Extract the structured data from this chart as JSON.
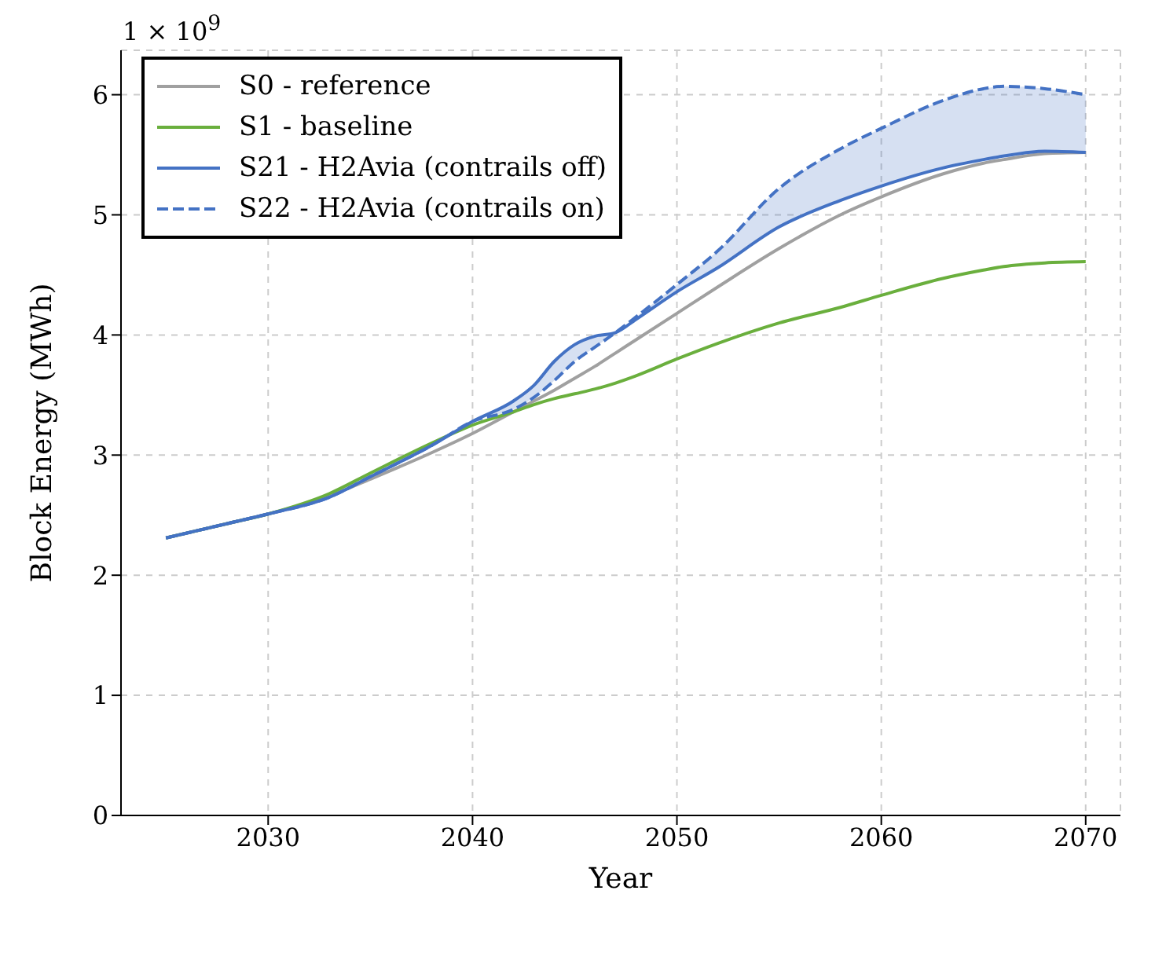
{
  "chart_data": {
    "type": "line",
    "xlabel": "Year",
    "ylabel": "Block Energy (MWh)",
    "annotations": [
      "1 × 10$^{9}$"
    ],
    "x": [
      2025,
      2028,
      2030,
      2033,
      2035,
      2038,
      2040,
      2042,
      2043,
      2044,
      2045,
      2046,
      2047,
      2048,
      2050,
      2052,
      2055,
      2058,
      2060,
      2063,
      2065,
      2066,
      2068,
      2070
    ],
    "series": [
      {
        "name": "S0 - reference",
        "color": "#a0a0a0",
        "values": [
          2.31,
          2.43,
          2.51,
          2.66,
          2.8,
          3.02,
          3.18,
          3.36,
          3.45,
          3.54,
          3.64,
          3.74,
          3.85,
          3.96,
          4.18,
          4.4,
          4.72,
          5.0,
          5.15,
          5.34,
          5.43,
          5.46,
          5.51,
          5.52
        ]
      },
      {
        "name": "S1 - baseline",
        "color": "#6aaf3d",
        "values": [
          2.31,
          2.43,
          2.51,
          2.68,
          2.85,
          3.1,
          3.25,
          3.36,
          3.42,
          3.47,
          3.51,
          3.55,
          3.6,
          3.66,
          3.8,
          3.93,
          4.1,
          4.23,
          4.33,
          4.47,
          4.54,
          4.57,
          4.6,
          4.61
        ]
      },
      {
        "name": "S21 - H2Avia (contrails off)",
        "color": "#4472c4",
        "values": [
          2.31,
          2.43,
          2.51,
          2.65,
          2.82,
          3.08,
          3.28,
          3.45,
          3.58,
          3.78,
          3.92,
          3.99,
          4.02,
          4.13,
          4.36,
          4.56,
          4.9,
          5.12,
          5.24,
          5.39,
          5.46,
          5.49,
          5.53,
          5.52
        ]
      },
      {
        "name": "S22 - H2Avia (contrails on)",
        "color": "#4472c4",
        "line_style": "dashed",
        "values": [
          2.31,
          2.43,
          2.51,
          2.65,
          2.82,
          3.08,
          3.28,
          3.38,
          3.48,
          3.62,
          3.78,
          3.9,
          4.02,
          4.15,
          4.42,
          4.7,
          5.22,
          5.55,
          5.72,
          5.95,
          6.05,
          6.07,
          6.05,
          6.0
        ],
        "lower": [
          2.31,
          2.43,
          2.51,
          2.65,
          2.82,
          3.08,
          3.28,
          3.45,
          3.58,
          3.78,
          3.92,
          3.99,
          4.02,
          4.13,
          4.36,
          4.56,
          4.9,
          5.12,
          5.24,
          5.39,
          5.46,
          5.49,
          5.53,
          5.52
        ],
        "upper": [
          2.31,
          2.43,
          2.51,
          2.65,
          2.82,
          3.08,
          3.28,
          3.38,
          3.48,
          3.62,
          3.78,
          3.9,
          4.02,
          4.15,
          4.42,
          4.7,
          5.22,
          5.55,
          5.72,
          5.95,
          6.05,
          6.07,
          6.05,
          6.0
        ]
      }
    ],
    "xlim": [
      2022.8,
      2071.7
    ],
    "xticks": [
      2030,
      2040,
      2050,
      2060,
      2070
    ],
    "ylim": [
      0,
      6.37
    ],
    "yticks": [
      0,
      1,
      2,
      3,
      4,
      5,
      6
    ],
    "grid": true,
    "legend": "top left"
  }
}
